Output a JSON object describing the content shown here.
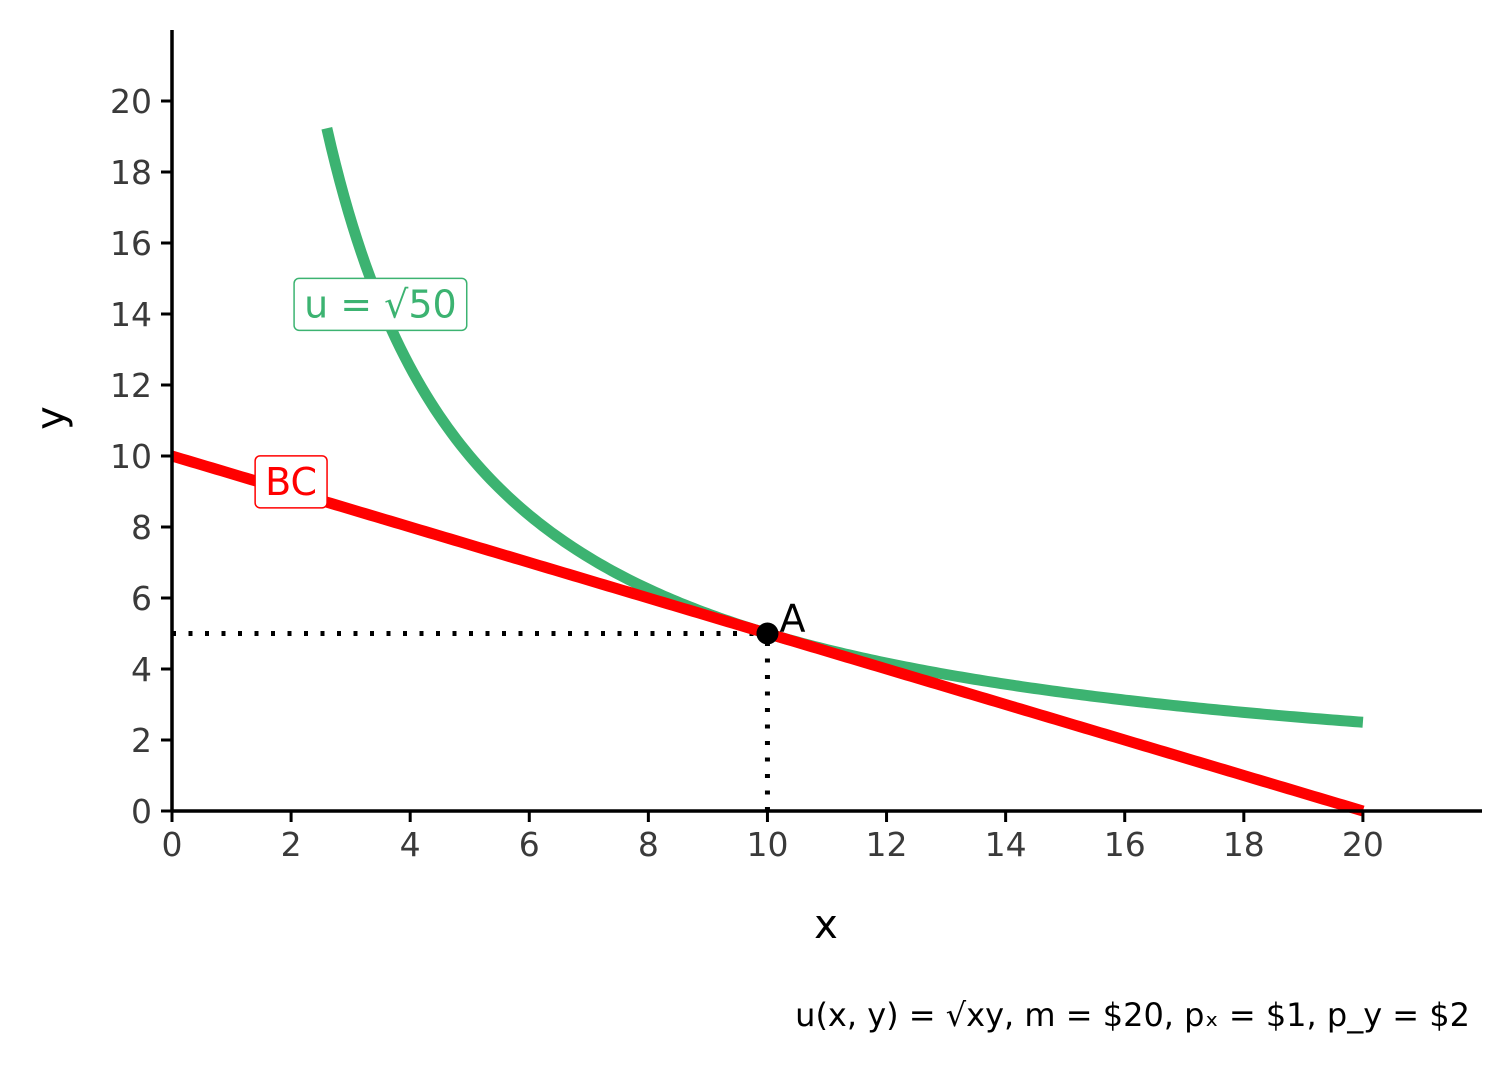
{
  "chart_data": {
    "type": "line",
    "xlabel": "x",
    "ylabel": "y",
    "xlim": [
      0,
      22
    ],
    "ylim": [
      0,
      22
    ],
    "x_ticks": [
      0,
      2,
      4,
      6,
      8,
      10,
      12,
      14,
      16,
      18,
      20
    ],
    "y_ticks": [
      0,
      2,
      4,
      6,
      8,
      10,
      12,
      14,
      16,
      18,
      20
    ],
    "grid": false,
    "colors": {
      "indifference_curve": "#3cb371",
      "budget_constraint": "#ff0000",
      "point": "#000000"
    },
    "series": [
      {
        "name": "u = √50",
        "label": "u = √50",
        "kind": "indifference_curve",
        "equation": "y = 50 / x",
        "x_range": [
          2.6,
          20
        ]
      },
      {
        "name": "BC",
        "label": "BC",
        "kind": "budget_constraint",
        "equation": "y = 10 - x / 2",
        "x_range": [
          0,
          20
        ]
      }
    ],
    "points": [
      {
        "label": "A",
        "x": 10,
        "y": 5
      }
    ],
    "reference_lines": [
      {
        "from": [
          0,
          5
        ],
        "to": [
          10,
          5
        ]
      },
      {
        "from": [
          10,
          0
        ],
        "to": [
          10,
          5
        ]
      }
    ],
    "labels": {
      "indifference_curve": {
        "text": "u = √50",
        "x": 3.5,
        "y": 14.3
      },
      "budget_constraint": {
        "text": "BC",
        "x": 2,
        "y": 9.3
      }
    },
    "caption": "u(x, y) = √xy, m = $20, pₓ = $1, p_y = $2"
  }
}
